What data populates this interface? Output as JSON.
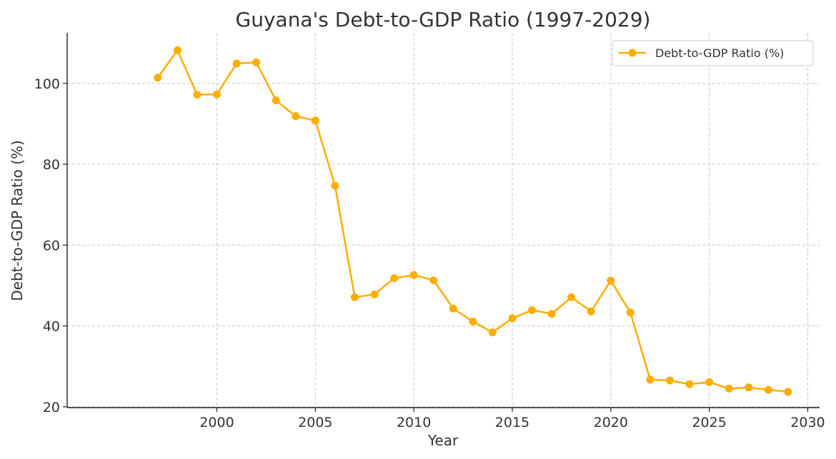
{
  "chart_data": {
    "type": "line",
    "title": "Guyana's Debt-to-GDP Ratio (1997-2029)",
    "xlabel": "Year",
    "ylabel": "Debt-to-GDP Ratio (%)",
    "xlim": [
      1992.4,
      2030.6
    ],
    "ylim": [
      19.8,
      112.5
    ],
    "xticks": [
      2000,
      2005,
      2010,
      2015,
      2020,
      2025,
      2030
    ],
    "yticks": [
      20,
      40,
      60,
      80,
      100
    ],
    "grid": true,
    "legend_position": "top-right",
    "series": [
      {
        "name": "Debt-to-GDP Ratio (%)",
        "color": "#FFAD00",
        "x": [
          1997,
          1998,
          1999,
          2000,
          2001,
          2002,
          2003,
          2004,
          2005,
          2006,
          2007,
          2008,
          2009,
          2010,
          2011,
          2012,
          2013,
          2014,
          2015,
          2016,
          2017,
          2018,
          2019,
          2020,
          2021,
          2022,
          2023,
          2024,
          2025,
          2026,
          2027,
          2028,
          2029
        ],
        "values": [
          101.4,
          108.2,
          97.2,
          97.3,
          104.9,
          105.2,
          95.8,
          91.9,
          90.8,
          74.7,
          47.1,
          47.8,
          51.8,
          52.6,
          51.3,
          44.3,
          41.1,
          38.4,
          41.9,
          43.9,
          43.0,
          47.1,
          43.6,
          51.2,
          43.3,
          26.7,
          26.5,
          25.6,
          26.1,
          24.5,
          24.8,
          24.2,
          23.7
        ]
      }
    ]
  }
}
